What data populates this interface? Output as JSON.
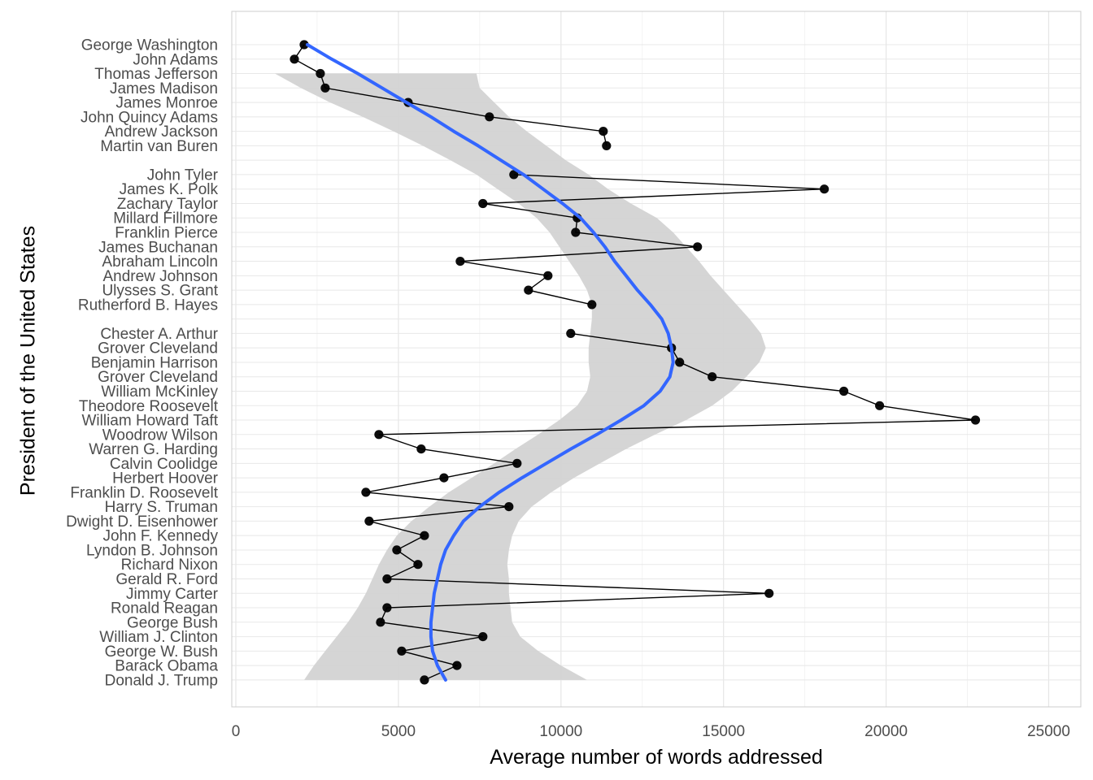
{
  "chart_data": {
    "type": "line",
    "title": "",
    "xlabel": "Average number of words addressed",
    "ylabel": "President of the United States",
    "xlim": [
      0,
      26000
    ],
    "x_ticks": [
      0,
      5000,
      10000,
      15000,
      20000,
      25000
    ],
    "x_tick_labels": [
      "0",
      "5000",
      "10000",
      "15000",
      "20000",
      "25000"
    ],
    "grid": true,
    "legend": "none",
    "colors": {
      "points": "#000000",
      "smooth_line": "#3366ff",
      "ribbon": "#d3d3d3",
      "grid": "#ebebeb",
      "panel_border": "#cccccc"
    },
    "categories": [
      "George Washington",
      "John Adams",
      "Thomas Jefferson",
      "James Madison",
      "James Monroe",
      "John Quincy Adams",
      "Andrew Jackson",
      "Martin van Buren",
      "",
      "John Tyler",
      "James K. Polk",
      "Zachary Taylor",
      "Millard Fillmore",
      "Franklin Pierce",
      "James Buchanan",
      "Abraham Lincoln",
      "Andrew Johnson",
      "Ulysses S. Grant",
      "Rutherford B. Hayes",
      "",
      "Chester A. Arthur",
      "Grover Cleveland",
      "Benjamin Harrison",
      "Grover Cleveland",
      "William McKinley",
      "Theodore Roosevelt",
      "William Howard Taft",
      "Woodrow Wilson",
      "Warren G. Harding",
      "Calvin Coolidge",
      "Herbert Hoover",
      "Franklin D. Roosevelt",
      "Harry S. Truman",
      "Dwight D. Eisenhower",
      "John F. Kennedy",
      "Lyndon B. Johnson",
      "Richard Nixon",
      "Gerald R. Ford",
      "Jimmy Carter",
      "Ronald Reagan",
      "George Bush",
      "William J. Clinton",
      "George W. Bush",
      "Barack Obama",
      "Donald J. Trump"
    ],
    "series": [
      {
        "values": [
          2100,
          1800,
          2600,
          2750,
          5300,
          7800,
          11300,
          11400,
          null,
          8550,
          18100,
          7600,
          10500,
          10450,
          14200,
          6900,
          9600,
          9000,
          10950,
          null,
          10300,
          13400,
          13650,
          14650,
          18700,
          19800,
          22750,
          4400,
          5700,
          8650,
          6400,
          4000,
          8400,
          4100,
          5800,
          4950,
          5600,
          4650,
          16400,
          4650,
          4450,
          7600,
          5100,
          6800,
          5800
        ]
      }
    ],
    "smooth": {
      "fit": [
        2200,
        2950,
        3750,
        4500,
        5250,
        6000,
        6700,
        7450,
        8150,
        8850,
        9450,
        10050,
        10600,
        11000,
        11350,
        11650,
        12000,
        12350,
        12750,
        13100,
        13300,
        13400,
        13450,
        13350,
        13050,
        12550,
        11850,
        11100,
        10300,
        9550,
        8800,
        8100,
        7500,
        7000,
        6700,
        6450,
        6300,
        6200,
        6100,
        6050,
        6000,
        6000,
        6050,
        6200,
        6450
      ],
      "lower": [
        null,
        null,
        1200,
        2000,
        2900,
        3900,
        4850,
        5750,
        6600,
        7400,
        8050,
        8700,
        9250,
        9650,
        9950,
        10250,
        10550,
        10800,
        10950,
        10950,
        10900,
        10850,
        10850,
        10900,
        10800,
        10500,
        9950,
        9300,
        8600,
        7950,
        7250,
        6550,
        5950,
        5400,
        4950,
        4650,
        4400,
        4200,
        4000,
        3750,
        3450,
        3100,
        2750,
        2400,
        2100
      ],
      "upper": [
        null,
        null,
        7400,
        7500,
        7950,
        8400,
        8950,
        9550,
        10150,
        10850,
        11450,
        12150,
        12950,
        13450,
        13850,
        14250,
        14600,
        15000,
        15400,
        15800,
        16150,
        16300,
        16100,
        15700,
        15250,
        14650,
        13850,
        12900,
        12000,
        11200,
        10400,
        9700,
        9100,
        8700,
        8500,
        8400,
        8350,
        8400,
        8400,
        8450,
        8500,
        8750,
        9300,
        10000,
        10800
      ]
    }
  }
}
